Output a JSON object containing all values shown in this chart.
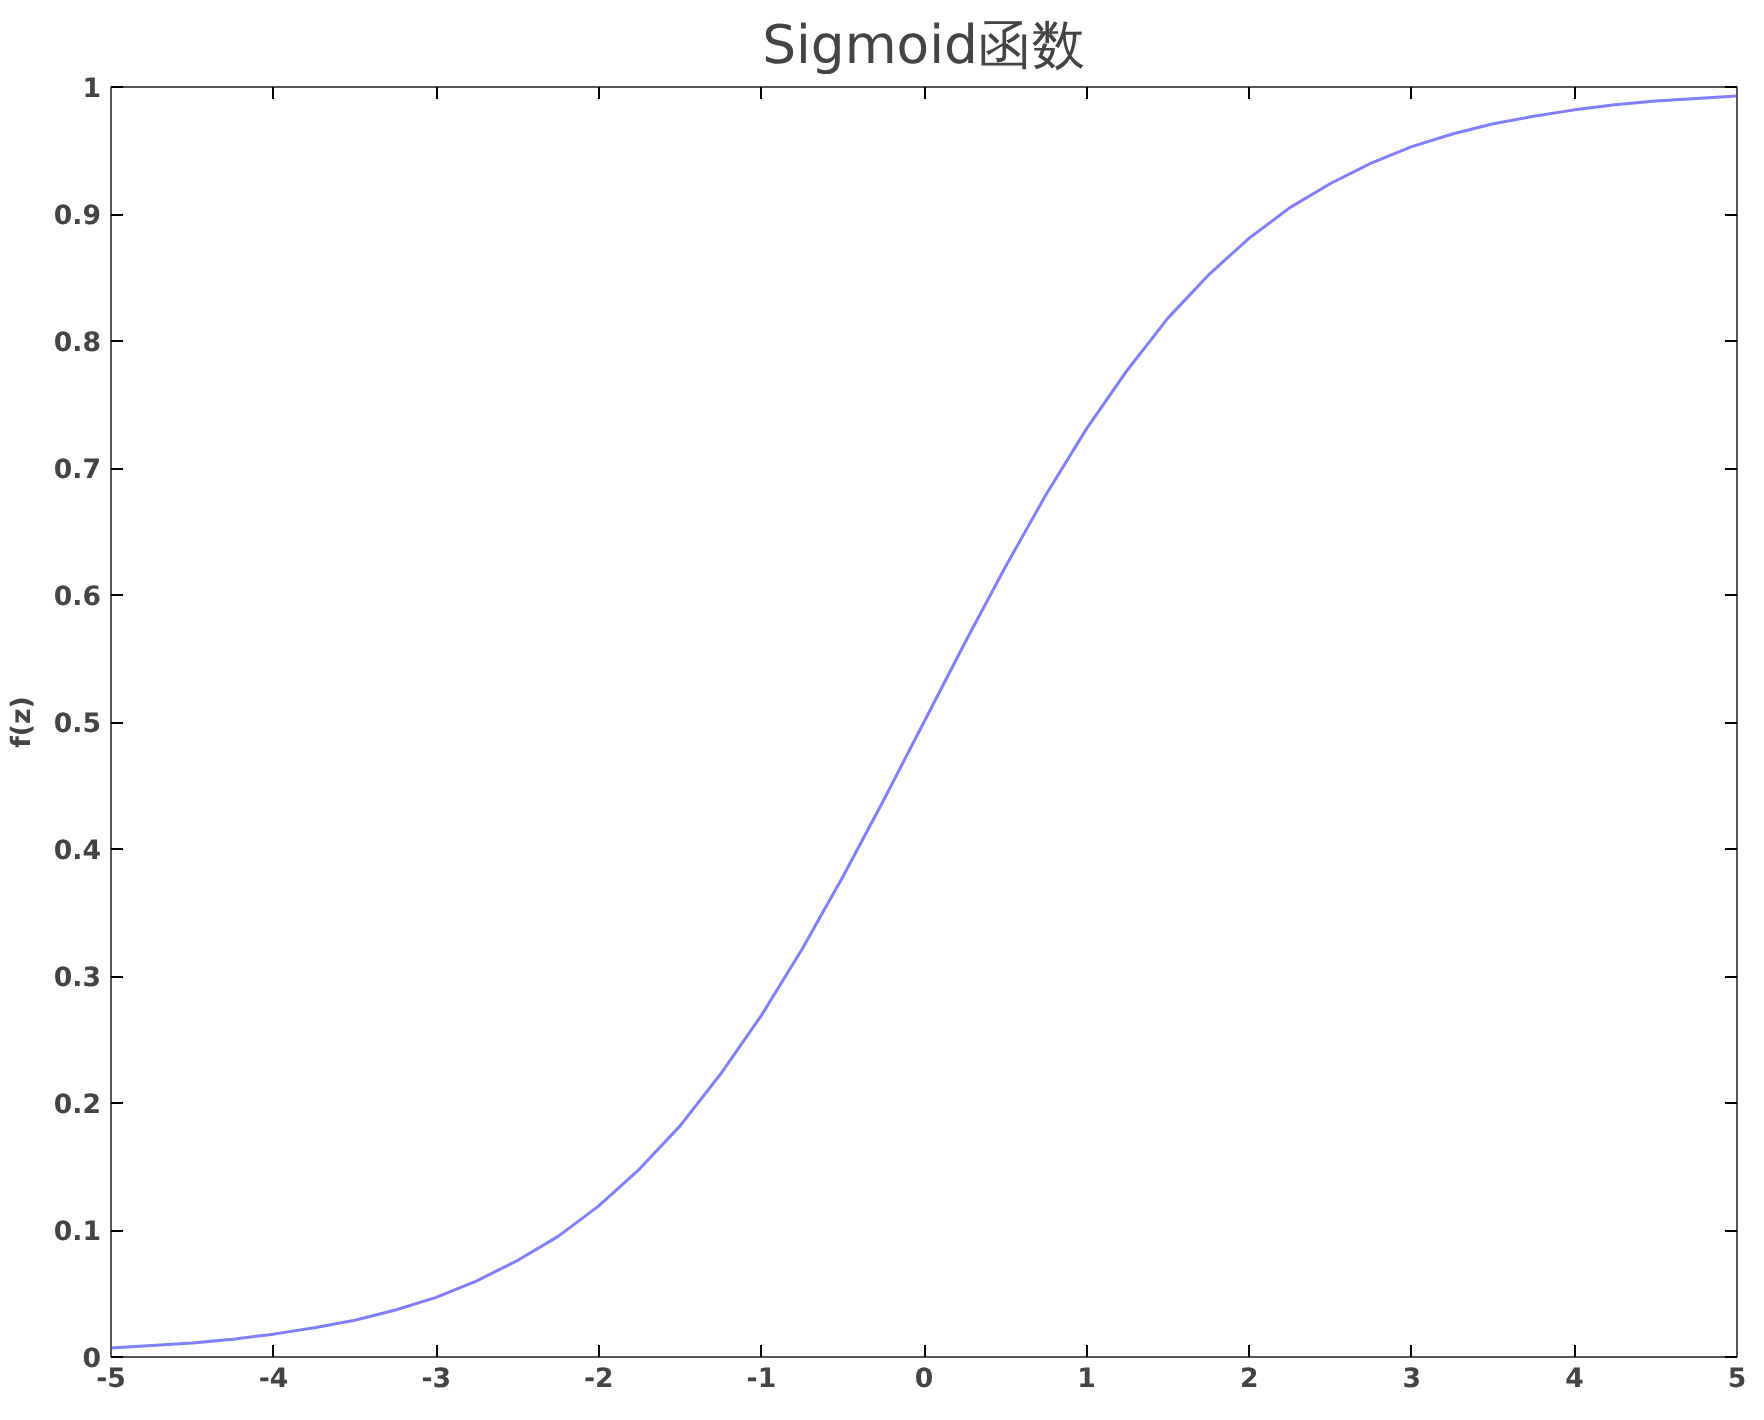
{
  "chart_data": {
    "type": "line",
    "title": "Sigmoid函数",
    "ylabel": "f(z)",
    "x": [
      -5,
      -4.75,
      -4.5,
      -4.25,
      -4,
      -3.75,
      -3.5,
      -3.25,
      -3,
      -2.75,
      -2.5,
      -2.25,
      -2,
      -1.75,
      -1.5,
      -1.25,
      -1,
      -0.75,
      -0.5,
      -0.25,
      0,
      0.25,
      0.5,
      0.75,
      1,
      1.25,
      1.5,
      1.75,
      2,
      2.25,
      2.5,
      2.75,
      3,
      3.25,
      3.5,
      3.75,
      4,
      4.25,
      4.5,
      4.75,
      5
    ],
    "series": [
      {
        "color": "#7f7fff",
        "values": [
          0.007,
          0.009,
          0.011,
          0.014,
          0.018,
          0.023,
          0.029,
          0.037,
          0.047,
          0.06,
          0.076,
          0.095,
          0.119,
          0.148,
          0.182,
          0.223,
          0.269,
          0.321,
          0.378,
          0.438,
          0.5,
          0.562,
          0.622,
          0.679,
          0.731,
          0.777,
          0.818,
          0.852,
          0.881,
          0.905,
          0.924,
          0.94,
          0.953,
          0.963,
          0.971,
          0.977,
          0.982,
          0.986,
          0.989,
          0.991,
          0.993
        ]
      }
    ],
    "xlim": [
      -5,
      5
    ],
    "xticks": [
      -5,
      -4,
      -3,
      -2,
      -1,
      0,
      1,
      2,
      3,
      4,
      5
    ],
    "ylim": [
      0,
      1
    ],
    "yticks": [
      0,
      0.1,
      0.2,
      0.3,
      0.4,
      0.5,
      0.6,
      0.7,
      0.8,
      0.9,
      1
    ],
    "line_style": "solid"
  }
}
